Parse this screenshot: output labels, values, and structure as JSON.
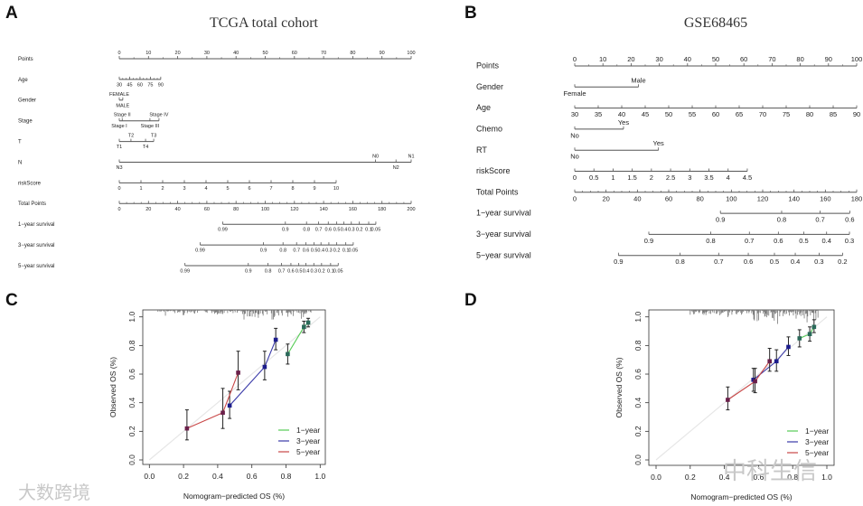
{
  "panels": {
    "a": "A",
    "b": "B",
    "c": "C",
    "d": "D"
  },
  "titles": {
    "a": "TCGA total cohort",
    "b": "GSE68465"
  },
  "watermarks": {
    "left": "大数跨境",
    "right": "中科生信"
  },
  "chart_data": [
    {
      "type": "nomogram",
      "title": "TCGA total cohort",
      "points_range": [
        0,
        100
      ],
      "total_range": [
        0,
        200
      ],
      "axes": [
        {
          "label": "Points",
          "scale": "points",
          "ticks": [
            {
              "v": 0,
              "t": "0"
            },
            {
              "v": 10,
              "t": "10"
            },
            {
              "v": 20,
              "t": "20"
            },
            {
              "v": 30,
              "t": "30"
            },
            {
              "v": 40,
              "t": "40"
            },
            {
              "v": 50,
              "t": "50"
            },
            {
              "v": 60,
              "t": "60"
            },
            {
              "v": 70,
              "t": "70"
            },
            {
              "v": 80,
              "t": "80"
            },
            {
              "v": 90,
              "t": "90"
            },
            {
              "v": 100,
              "t": "100"
            }
          ],
          "side": "above",
          "minor": 2
        },
        {
          "label": "Age",
          "scale": "points",
          "ticks": [
            {
              "v": 0,
              "t": "30"
            },
            {
              "v": 3.55,
              "t": "45"
            },
            {
              "v": 7.1,
              "t": "60"
            },
            {
              "v": 10.65,
              "t": "75"
            },
            {
              "v": 14.2,
              "t": "90"
            }
          ],
          "side": "below",
          "minor": 3
        },
        {
          "label": "Gender",
          "scale": "points",
          "ticks": [
            {
              "v": 0,
              "t": "FEMALE",
              "s": "above"
            },
            {
              "v": 1.2,
              "t": "MALE",
              "s": "below"
            }
          ]
        },
        {
          "label": "Stage",
          "scale": "points",
          "ticks": [
            {
              "v": 0,
              "t": "Stage I",
              "s": "below"
            },
            {
              "v": 1,
              "t": "Stage II",
              "s": "above"
            },
            {
              "v": 10.5,
              "t": "Stage III",
              "s": "below"
            },
            {
              "v": 13.6,
              "t": "Stage IV",
              "s": "above"
            }
          ]
        },
        {
          "label": "T",
          "scale": "points",
          "ticks": [
            {
              "v": 0,
              "t": "T1",
              "s": "below"
            },
            {
              "v": 4,
              "t": "T2",
              "s": "above"
            },
            {
              "v": 9,
              "t": "T4",
              "s": "below"
            },
            {
              "v": 11.8,
              "t": "T3",
              "s": "above"
            }
          ]
        },
        {
          "label": "N",
          "scale": "points",
          "ticks": [
            {
              "v": 0,
              "t": "N3",
              "s": "below"
            },
            {
              "v": 87.8,
              "t": "N0",
              "s": "above"
            },
            {
              "v": 94.8,
              "t": "N2",
              "s": "below"
            },
            {
              "v": 100,
              "t": "N1",
              "s": "above"
            }
          ]
        },
        {
          "label": "riskScore",
          "scale": "points",
          "ticks": [
            {
              "v": 0,
              "t": "0"
            },
            {
              "v": 7.43,
              "t": "1"
            },
            {
              "v": 14.86,
              "t": "2"
            },
            {
              "v": 22.29,
              "t": "3"
            },
            {
              "v": 29.72,
              "t": "4"
            },
            {
              "v": 37.15,
              "t": "5"
            },
            {
              "v": 44.58,
              "t": "6"
            },
            {
              "v": 52.01,
              "t": "7"
            },
            {
              "v": 59.44,
              "t": "8"
            },
            {
              "v": 66.87,
              "t": "9"
            },
            {
              "v": 74.3,
              "t": "10"
            }
          ],
          "side": "below"
        },
        {
          "label": "Total Points",
          "scale": "total",
          "ticks": [
            {
              "v": 0,
              "t": "0"
            },
            {
              "v": 20,
              "t": "20"
            },
            {
              "v": 40,
              "t": "40"
            },
            {
              "v": 60,
              "t": "60"
            },
            {
              "v": 80,
              "t": "80"
            },
            {
              "v": 100,
              "t": "100"
            },
            {
              "v": 120,
              "t": "120"
            },
            {
              "v": 140,
              "t": "140"
            },
            {
              "v": 160,
              "t": "160"
            },
            {
              "v": 180,
              "t": "180"
            },
            {
              "v": 200,
              "t": "200"
            }
          ],
          "side": "below",
          "minor": 4
        },
        {
          "label": "1−year survival",
          "scale": "total",
          "ticks": [
            {
              "v": 70.9,
              "t": "0.99"
            },
            {
              "v": 113.8,
              "t": "0.9"
            },
            {
              "v": 128.3,
              "t": "0.8"
            },
            {
              "v": 136.6,
              "t": "0.7"
            },
            {
              "v": 143.2,
              "t": "0.6"
            },
            {
              "v": 149,
              "t": "0.5"
            },
            {
              "v": 153.9,
              "t": "0.4"
            },
            {
              "v": 159,
              "t": "0.3"
            },
            {
              "v": 164.5,
              "t": "0.2"
            },
            {
              "v": 170.9,
              "t": "0.1"
            },
            {
              "v": 175.8,
              "t": "0.05"
            }
          ],
          "side": "below"
        },
        {
          "label": "3−year survival",
          "scale": "total",
          "ticks": [
            {
              "v": 55.4,
              "t": "0.99"
            },
            {
              "v": 98.8,
              "t": "0.9"
            },
            {
              "v": 112.2,
              "t": "0.8"
            },
            {
              "v": 121.5,
              "t": "0.7"
            },
            {
              "v": 127.9,
              "t": "0.6"
            },
            {
              "v": 133.5,
              "t": "0.5"
            },
            {
              "v": 138.2,
              "t": "0.4"
            },
            {
              "v": 143.6,
              "t": "0.3"
            },
            {
              "v": 149,
              "t": "0.2"
            },
            {
              "v": 155.2,
              "t": "0.1"
            },
            {
              "v": 160.3,
              "t": "0.05"
            }
          ],
          "side": "below"
        },
        {
          "label": "5−year survival",
          "scale": "total",
          "ticks": [
            {
              "v": 45,
              "t": "0.99"
            },
            {
              "v": 88.4,
              "t": "0.9"
            },
            {
              "v": 101.9,
              "t": "0.8"
            },
            {
              "v": 111.2,
              "t": "0.7"
            },
            {
              "v": 117.6,
              "t": "0.6"
            },
            {
              "v": 123,
              "t": "0.5"
            },
            {
              "v": 127.9,
              "t": "0.4"
            },
            {
              "v": 133.3,
              "t": "0.3"
            },
            {
              "v": 138.6,
              "t": "0.2"
            },
            {
              "v": 144.8,
              "t": "0.1"
            },
            {
              "v": 150,
              "t": "0.05"
            }
          ],
          "side": "below"
        }
      ]
    },
    {
      "type": "nomogram",
      "title": "GSE68465",
      "points_range": [
        0,
        100
      ],
      "total_range": [
        0,
        180
      ],
      "axes": [
        {
          "label": "Points",
          "scale": "points",
          "ticks": [
            {
              "v": 0,
              "t": "0"
            },
            {
              "v": 10,
              "t": "10"
            },
            {
              "v": 20,
              "t": "20"
            },
            {
              "v": 30,
              "t": "30"
            },
            {
              "v": 40,
              "t": "40"
            },
            {
              "v": 50,
              "t": "50"
            },
            {
              "v": 60,
              "t": "60"
            },
            {
              "v": 70,
              "t": "70"
            },
            {
              "v": 80,
              "t": "80"
            },
            {
              "v": 90,
              "t": "90"
            },
            {
              "v": 100,
              "t": "100"
            }
          ],
          "side": "above",
          "minor": 2
        },
        {
          "label": "Gender",
          "scale": "points",
          "ticks": [
            {
              "v": 0,
              "t": "Female",
              "s": "below"
            },
            {
              "v": 22.6,
              "t": "Male",
              "s": "above"
            }
          ]
        },
        {
          "label": "Age",
          "scale": "points",
          "ticks": [
            {
              "v": 0,
              "t": "30"
            },
            {
              "v": 8.33,
              "t": "35"
            },
            {
              "v": 16.67,
              "t": "40"
            },
            {
              "v": 25,
              "t": "45"
            },
            {
              "v": 33.33,
              "t": "50"
            },
            {
              "v": 41.67,
              "t": "55"
            },
            {
              "v": 50,
              "t": "60"
            },
            {
              "v": 58.33,
              "t": "65"
            },
            {
              "v": 66.67,
              "t": "70"
            },
            {
              "v": 75,
              "t": "75"
            },
            {
              "v": 83.33,
              "t": "80"
            },
            {
              "v": 91.67,
              "t": "85"
            },
            {
              "v": 100,
              "t": "90"
            }
          ],
          "side": "below"
        },
        {
          "label": "Chemo",
          "scale": "points",
          "ticks": [
            {
              "v": 0,
              "t": "No",
              "s": "below"
            },
            {
              "v": 17.3,
              "t": "Yes",
              "s": "above"
            }
          ]
        },
        {
          "label": "RT",
          "scale": "points",
          "ticks": [
            {
              "v": 0,
              "t": "No",
              "s": "below"
            },
            {
              "v": 29.7,
              "t": "Yes",
              "s": "above"
            }
          ]
        },
        {
          "label": "riskScore",
          "scale": "points",
          "ticks": [
            {
              "v": 0,
              "t": "0"
            },
            {
              "v": 6.8,
              "t": "0.5"
            },
            {
              "v": 13.6,
              "t": "1"
            },
            {
              "v": 20.4,
              "t": "1.5"
            },
            {
              "v": 27.2,
              "t": "2"
            },
            {
              "v": 34,
              "t": "2.5"
            },
            {
              "v": 40.8,
              "t": "3"
            },
            {
              "v": 47.6,
              "t": "3.5"
            },
            {
              "v": 54.4,
              "t": "4"
            },
            {
              "v": 61.2,
              "t": "4.5"
            }
          ],
          "side": "below"
        },
        {
          "label": "Total Points",
          "scale": "total",
          "ticks": [
            {
              "v": 0,
              "t": "0"
            },
            {
              "v": 20,
              "t": "20"
            },
            {
              "v": 40,
              "t": "40"
            },
            {
              "v": 60,
              "t": "60"
            },
            {
              "v": 80,
              "t": "80"
            },
            {
              "v": 100,
              "t": "100"
            },
            {
              "v": 120,
              "t": "120"
            },
            {
              "v": 140,
              "t": "140"
            },
            {
              "v": 160,
              "t": "160"
            },
            {
              "v": 180,
              "t": "180"
            }
          ],
          "side": "below",
          "minor": 4
        },
        {
          "label": "1−year survival",
          "scale": "total",
          "ticks": [
            {
              "v": 93,
              "t": "0.9"
            },
            {
              "v": 132.1,
              "t": "0.8"
            },
            {
              "v": 156.7,
              "t": "0.7"
            },
            {
              "v": 175.6,
              "t": "0.6"
            }
          ],
          "side": "below"
        },
        {
          "label": "3−year survival",
          "scale": "total",
          "ticks": [
            {
              "v": 47.3,
              "t": "0.9"
            },
            {
              "v": 86.8,
              "t": "0.8"
            },
            {
              "v": 111.5,
              "t": "0.7"
            },
            {
              "v": 130,
              "t": "0.6"
            },
            {
              "v": 146.2,
              "t": "0.5"
            },
            {
              "v": 160.8,
              "t": "0.4"
            },
            {
              "v": 175.4,
              "t": "0.3"
            }
          ],
          "side": "below"
        },
        {
          "label": "5−year survival",
          "scale": "total",
          "ticks": [
            {
              "v": 27.9,
              "t": "0.9"
            },
            {
              "v": 67.3,
              "t": "0.8"
            },
            {
              "v": 91.9,
              "t": "0.7"
            },
            {
              "v": 110.8,
              "t": "0.6"
            },
            {
              "v": 127.5,
              "t": "0.5"
            },
            {
              "v": 140.8,
              "t": "0.4"
            },
            {
              "v": 156,
              "t": "0.3"
            },
            {
              "v": 171,
              "t": "0.2"
            }
          ],
          "side": "below"
        }
      ]
    },
    {
      "type": "scatter",
      "title": "",
      "xlabel": "Nomogram−predicted OS (%)",
      "ylabel": "Observed OS (%)",
      "xlim": [
        0,
        1
      ],
      "ylim": [
        0,
        1
      ],
      "xticks": [
        "0.0",
        "0.2",
        "0.4",
        "0.6",
        "0.8",
        "1.0"
      ],
      "yticks": [
        "0.0",
        "0.2",
        "0.4",
        "0.6",
        "0.8",
        "1.0"
      ],
      "legend": "bottom-right",
      "series": [
        {
          "name": "1−year",
          "color": "#55cc55",
          "points": [
            [
              0.81,
              0.74,
              0.67,
              0.81
            ],
            [
              0.905,
              0.93,
              0.89,
              0.97
            ],
            [
              0.93,
              0.96,
              0.93,
              0.99
            ]
          ]
        },
        {
          "name": "3−year",
          "color": "#3a3aa8",
          "points": [
            [
              0.47,
              0.38,
              0.29,
              0.48
            ],
            [
              0.675,
              0.65,
              0.56,
              0.76
            ],
            [
              0.74,
              0.84,
              0.77,
              0.92
            ]
          ]
        },
        {
          "name": "5−year",
          "color": "#c84646",
          "points": [
            [
              0.22,
              0.22,
              0.14,
              0.35
            ],
            [
              0.43,
              0.33,
              0.22,
              0.5
            ],
            [
              0.52,
              0.61,
              0.49,
              0.76
            ]
          ]
        }
      ]
    },
    {
      "type": "scatter",
      "title": "",
      "xlabel": "Nomogram−predicted OS (%)",
      "ylabel": "Observed OS (%)",
      "xlim": [
        0,
        1
      ],
      "ylim": [
        0,
        1
      ],
      "xticks": [
        "0.0",
        "0.2",
        "0.4",
        "0.6",
        "0.8",
        "1.0"
      ],
      "yticks": [
        "0.0",
        "0.2",
        "0.4",
        "0.6",
        "0.8",
        "1.0"
      ],
      "legend": "bottom-right",
      "series": [
        {
          "name": "1−year",
          "color": "#55cc55",
          "points": [
            [
              0.84,
              0.85,
              0.79,
              0.91
            ],
            [
              0.9,
              0.88,
              0.83,
              0.93
            ],
            [
              0.925,
              0.93,
              0.89,
              0.98
            ]
          ]
        },
        {
          "name": "3−year",
          "color": "#3a3aa8",
          "points": [
            [
              0.57,
              0.56,
              0.48,
              0.64
            ],
            [
              0.705,
              0.69,
              0.62,
              0.77
            ],
            [
              0.775,
              0.79,
              0.73,
              0.86
            ]
          ]
        },
        {
          "name": "5−year",
          "color": "#c84646",
          "points": [
            [
              0.42,
              0.42,
              0.35,
              0.51
            ],
            [
              0.58,
              0.55,
              0.47,
              0.64
            ],
            [
              0.665,
              0.69,
              0.62,
              0.78
            ]
          ]
        }
      ]
    }
  ]
}
